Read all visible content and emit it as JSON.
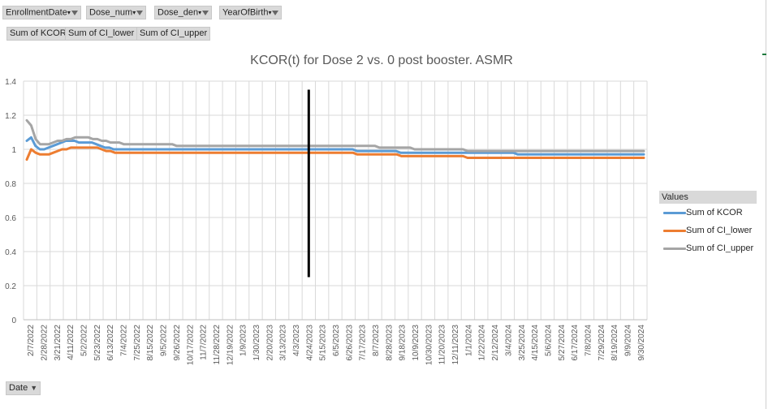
{
  "filters": [
    {
      "label": "EnrollmentDate"
    },
    {
      "label": "Dose_num"
    },
    {
      "label": "Dose_den"
    },
    {
      "label": "YearOfBirth"
    }
  ],
  "value_buttons": [
    "Sum of KCOR",
    "Sum of CI_lower",
    "Sum of CI_upper"
  ],
  "axis_field": {
    "label": "Date"
  },
  "colors": {
    "kcor": "#5b9bd5",
    "ci_lower": "#ed7d31",
    "ci_upper": "#a5a5a5",
    "grid": "#d9d9d9",
    "marker": "#000000"
  },
  "chart_data": {
    "type": "line",
    "title": "KCOR(t) for Dose 2 vs. 0 post booster. ASMR",
    "legend_title": "Values",
    "legend_position": "right",
    "grid": true,
    "ylim": [
      0,
      1.4
    ],
    "yticks": [
      "0",
      "0.2",
      "0.4",
      "0.6",
      "0.8",
      "1",
      "1.2",
      "1.4"
    ],
    "xtick_labels": [
      "2/7/2022",
      "2/28/2022",
      "3/21/2022",
      "4/11/2022",
      "5/2/2022",
      "5/23/2022",
      "6/13/2022",
      "7/4/2022",
      "7/25/2022",
      "8/15/2022",
      "9/5/2022",
      "9/26/2022",
      "10/17/2022",
      "11/7/2022",
      "11/28/2022",
      "12/19/2022",
      "1/9/2023",
      "1/30/2023",
      "2/20/2023",
      "3/13/2023",
      "4/3/2023",
      "4/24/2023",
      "5/15/2023",
      "6/5/2023",
      "6/26/2023",
      "7/17/2023",
      "8/7/2023",
      "8/28/2023",
      "9/18/2023",
      "10/9/2023",
      "10/30/2023",
      "11/20/2023",
      "12/11/2023",
      "1/1/2024",
      "1/22/2024",
      "2/12/2024",
      "3/4/2024",
      "3/25/2024",
      "4/15/2024",
      "5/6/2024",
      "5/27/2024",
      "6/17/2024",
      "7/8/2024",
      "7/29/2024",
      "8/19/2024",
      "9/9/2024",
      "9/30/2024"
    ],
    "vertical_marker": {
      "x": "4/24/2023",
      "y_range": [
        0.25,
        1.35
      ]
    },
    "series": [
      {
        "name": "Sum of KCOR",
        "color": "#5b9bd5",
        "values": [
          1.05,
          1.07,
          1.02,
          1.0,
          1.0,
          1.01,
          1.02,
          1.03,
          1.04,
          1.05,
          1.05,
          1.05,
          1.04,
          1.04,
          1.04,
          1.04,
          1.03,
          1.02,
          1.01,
          1.01,
          1.0,
          1.0,
          1.0,
          1.0,
          1.0,
          1.0,
          1.0,
          1.0,
          1.0,
          1.0,
          1.0,
          1.0,
          1.0,
          1.0,
          1.0,
          1.0,
          1.0,
          1.0,
          1.0,
          1.0,
          1.0,
          1.0,
          1.0,
          1.0,
          1.0,
          1.0,
          1.0,
          1.0,
          1.0,
          1.0,
          1.0,
          1.0,
          1.0,
          1.0,
          1.0,
          1.0,
          1.0,
          1.0,
          1.0,
          1.0,
          1.0,
          1.0,
          1.0,
          1.0,
          1.0,
          1.0,
          1.0,
          1.0,
          1.0,
          1.0,
          1.0,
          1.0,
          1.0,
          1.0,
          1.0,
          1.0,
          0.99,
          0.99,
          0.99,
          0.99,
          0.99,
          0.99,
          0.99,
          0.99,
          0.99,
          0.99,
          0.98,
          0.98,
          0.98,
          0.98,
          0.98,
          0.98,
          0.98,
          0.98,
          0.98,
          0.98,
          0.98,
          0.98,
          0.98,
          0.98,
          0.98,
          0.98,
          0.98,
          0.98,
          0.98,
          0.98,
          0.98,
          0.98,
          0.98,
          0.98,
          0.98,
          0.98,
          0.98,
          0.97,
          0.97,
          0.97,
          0.97,
          0.97,
          0.97,
          0.97,
          0.97,
          0.97,
          0.97,
          0.97,
          0.97,
          0.97,
          0.97,
          0.97,
          0.97,
          0.97,
          0.97,
          0.97,
          0.97,
          0.97,
          0.97,
          0.97,
          0.97,
          0.97,
          0.97,
          0.97,
          0.97,
          0.97,
          0.97
        ]
      },
      {
        "name": "Sum of CI_lower",
        "color": "#ed7d31",
        "values": [
          0.94,
          1.0,
          0.98,
          0.97,
          0.97,
          0.97,
          0.98,
          0.99,
          1.0,
          1.0,
          1.01,
          1.01,
          1.01,
          1.01,
          1.01,
          1.01,
          1.01,
          1.0,
          0.99,
          0.99,
          0.98,
          0.98,
          0.98,
          0.98,
          0.98,
          0.98,
          0.98,
          0.98,
          0.98,
          0.98,
          0.98,
          0.98,
          0.98,
          0.98,
          0.98,
          0.98,
          0.98,
          0.98,
          0.98,
          0.98,
          0.98,
          0.98,
          0.98,
          0.98,
          0.98,
          0.98,
          0.98,
          0.98,
          0.98,
          0.98,
          0.98,
          0.98,
          0.98,
          0.98,
          0.98,
          0.98,
          0.98,
          0.98,
          0.98,
          0.98,
          0.98,
          0.98,
          0.98,
          0.98,
          0.98,
          0.98,
          0.98,
          0.98,
          0.98,
          0.98,
          0.98,
          0.98,
          0.98,
          0.98,
          0.98,
          0.97,
          0.97,
          0.97,
          0.97,
          0.97,
          0.97,
          0.97,
          0.97,
          0.97,
          0.97,
          0.96,
          0.96,
          0.96,
          0.96,
          0.96,
          0.96,
          0.96,
          0.96,
          0.96,
          0.96,
          0.96,
          0.96,
          0.96,
          0.96,
          0.96,
          0.95,
          0.95,
          0.95,
          0.95,
          0.95,
          0.95,
          0.95,
          0.95,
          0.95,
          0.95,
          0.95,
          0.95,
          0.95,
          0.95,
          0.95,
          0.95,
          0.95,
          0.95,
          0.95,
          0.95,
          0.95,
          0.95,
          0.95,
          0.95,
          0.95,
          0.95,
          0.95,
          0.95,
          0.95,
          0.95,
          0.95,
          0.95,
          0.95,
          0.95,
          0.95,
          0.95,
          0.95,
          0.95,
          0.95,
          0.95,
          0.95
        ]
      },
      {
        "name": "Sum of CI_upper",
        "color": "#a5a5a5",
        "values": [
          1.17,
          1.14,
          1.06,
          1.03,
          1.03,
          1.03,
          1.04,
          1.05,
          1.05,
          1.06,
          1.06,
          1.07,
          1.07,
          1.07,
          1.07,
          1.06,
          1.06,
          1.05,
          1.05,
          1.04,
          1.04,
          1.04,
          1.03,
          1.03,
          1.03,
          1.03,
          1.03,
          1.03,
          1.03,
          1.03,
          1.03,
          1.03,
          1.03,
          1.03,
          1.02,
          1.02,
          1.02,
          1.02,
          1.02,
          1.02,
          1.02,
          1.02,
          1.02,
          1.02,
          1.02,
          1.02,
          1.02,
          1.02,
          1.02,
          1.02,
          1.02,
          1.02,
          1.02,
          1.02,
          1.02,
          1.02,
          1.02,
          1.02,
          1.02,
          1.02,
          1.02,
          1.02,
          1.02,
          1.02,
          1.02,
          1.02,
          1.02,
          1.02,
          1.02,
          1.02,
          1.02,
          1.02,
          1.02,
          1.02,
          1.02,
          1.02,
          1.02,
          1.02,
          1.02,
          1.02,
          1.01,
          1.01,
          1.01,
          1.01,
          1.01,
          1.01,
          1.01,
          1.01,
          1.0,
          1.0,
          1.0,
          1.0,
          1.0,
          1.0,
          1.0,
          1.0,
          1.0,
          1.0,
          1.0,
          1.0,
          0.99,
          0.99,
          0.99,
          0.99,
          0.99,
          0.99,
          0.99,
          0.99,
          0.99,
          0.99,
          0.99,
          0.99,
          0.99,
          0.99,
          0.99,
          0.99,
          0.99,
          0.99,
          0.99,
          0.99,
          0.99,
          0.99,
          0.99,
          0.99,
          0.99,
          0.99,
          0.99,
          0.99,
          0.99,
          0.99,
          0.99,
          0.99,
          0.99,
          0.99,
          0.99,
          0.99,
          0.99,
          0.99,
          0.99,
          0.99,
          0.99
        ]
      }
    ]
  }
}
